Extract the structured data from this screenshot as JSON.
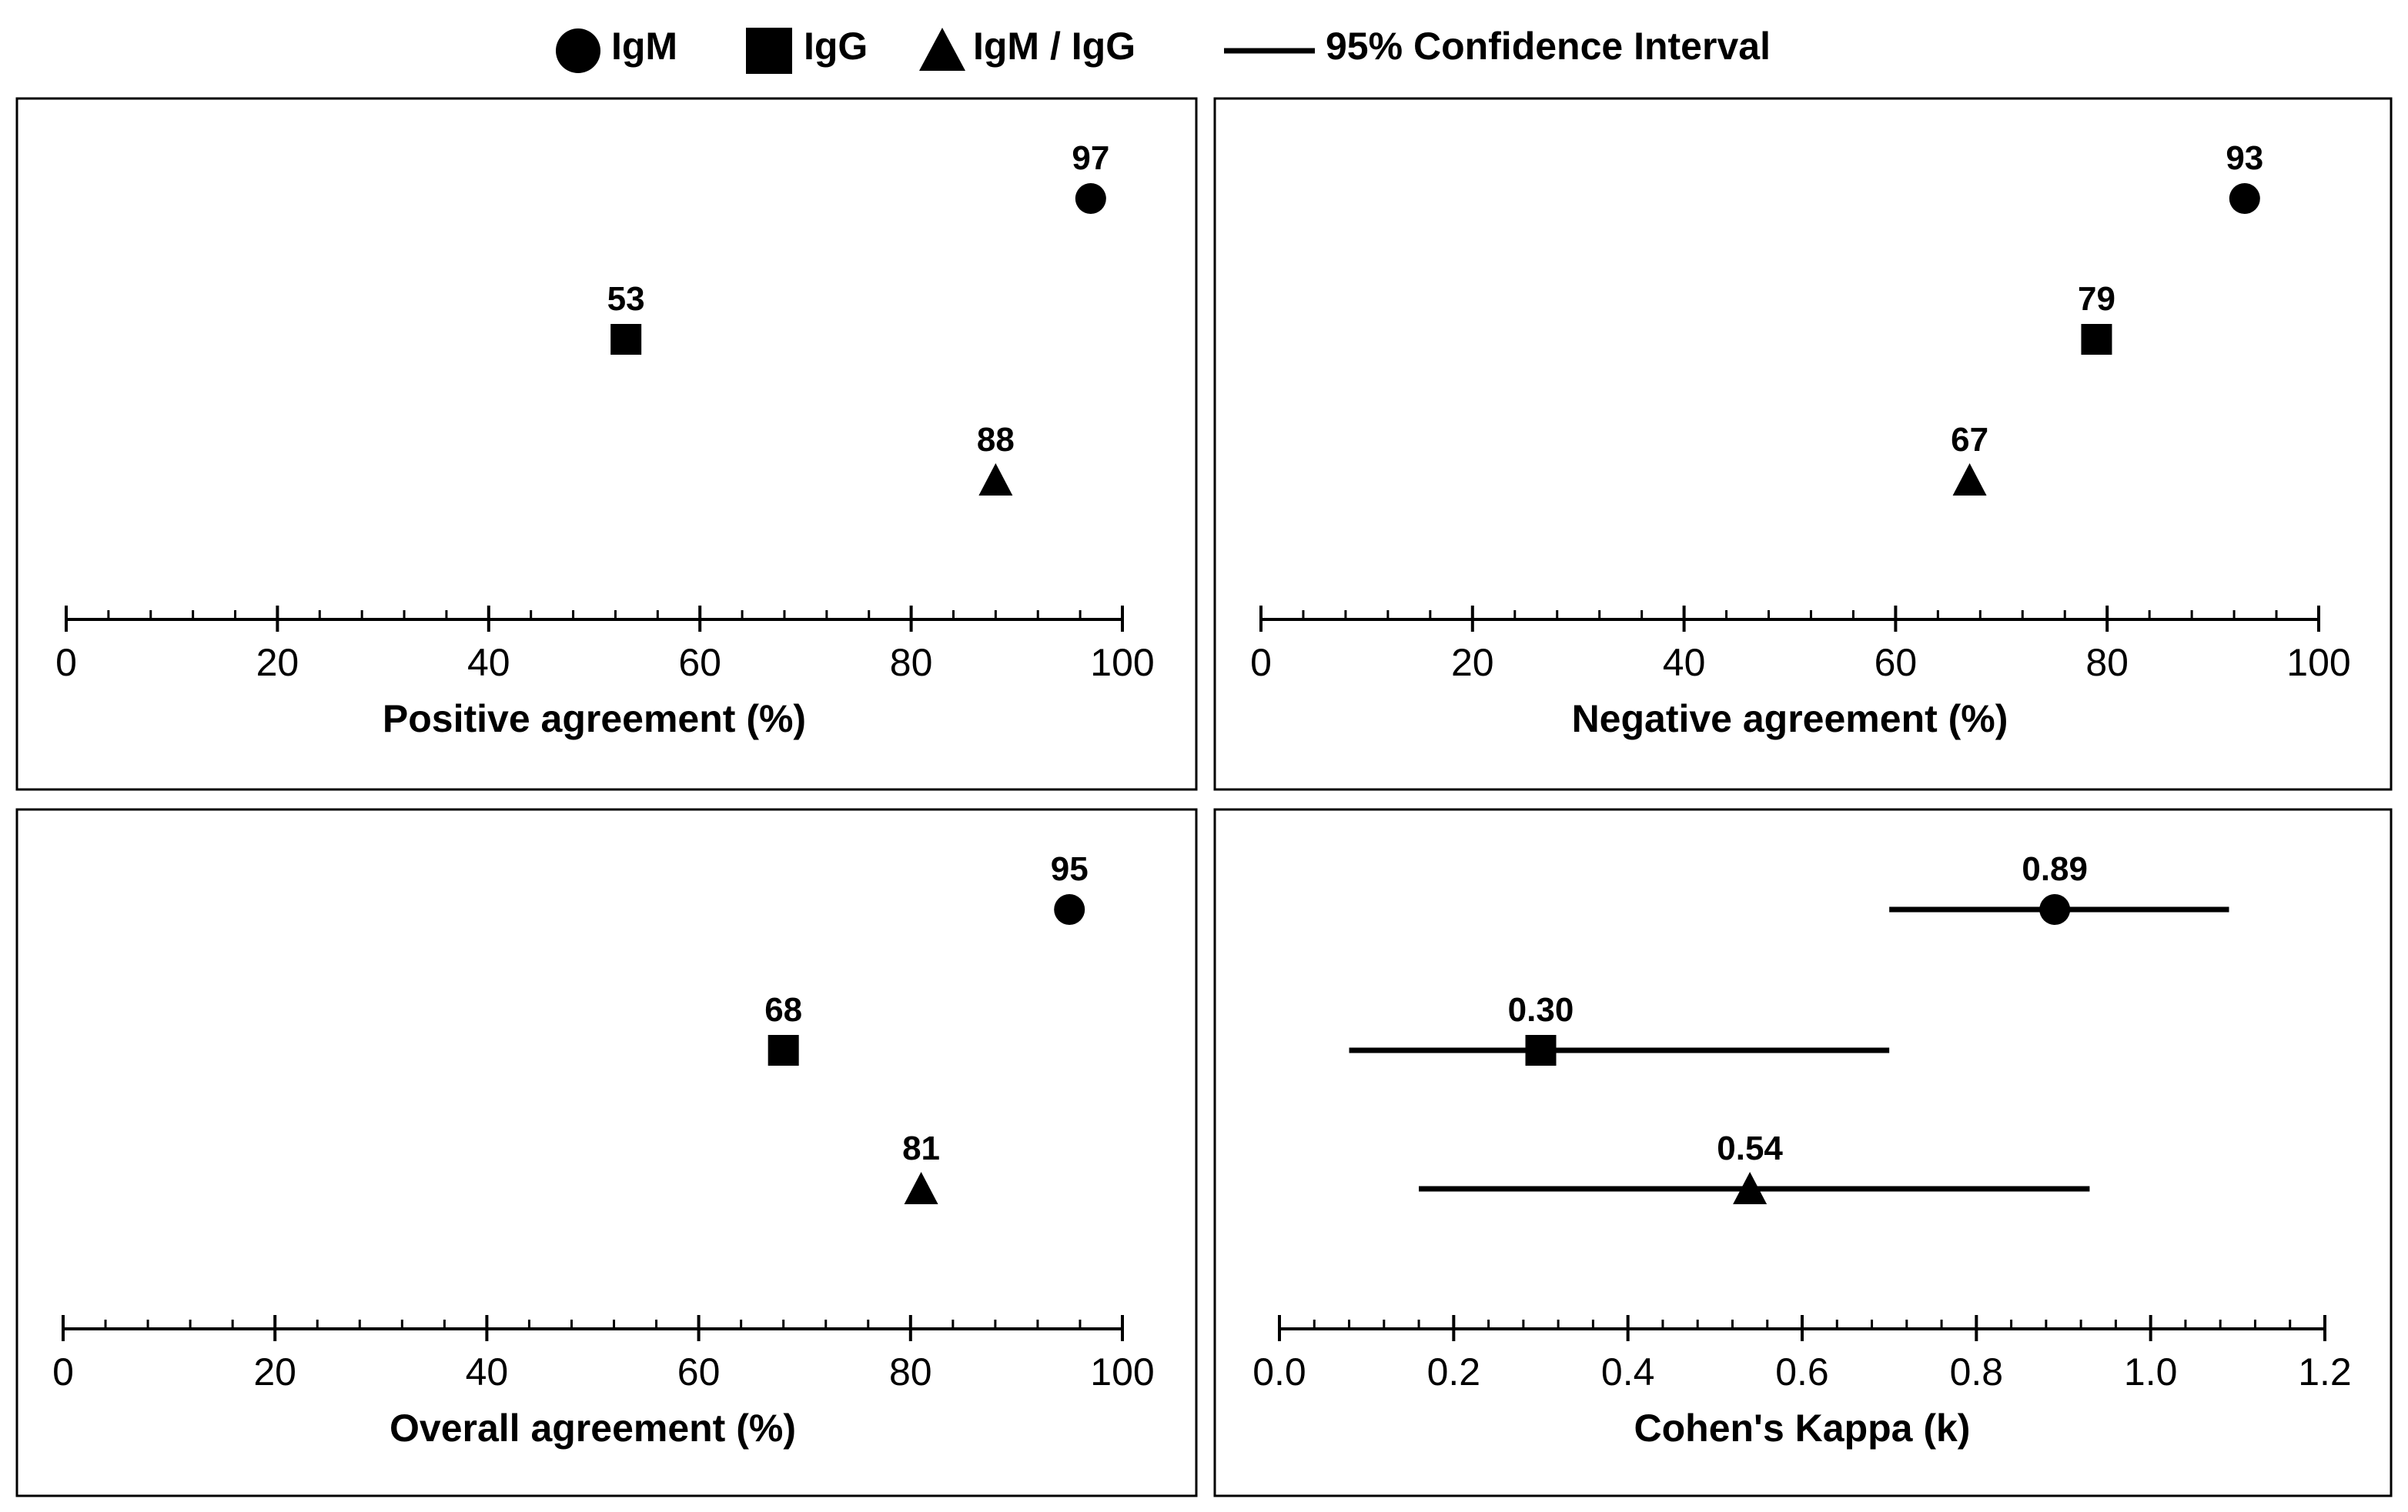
{
  "legend": [
    {
      "name": "IgM",
      "marker": "circle"
    },
    {
      "name": "IgG",
      "marker": "square"
    },
    {
      "name": "IgM / IgG",
      "marker": "triangle"
    },
    {
      "name": "95% Confidence Interval",
      "marker": "line"
    }
  ],
  "chart_data": [
    {
      "type": "scatter",
      "xlabel": "Positive agreement (%)",
      "xlim": [
        0,
        100
      ],
      "major_ticks": [
        0,
        20,
        40,
        60,
        80,
        100
      ],
      "tick_labels": [
        "0",
        "20",
        "40",
        "60",
        "80",
        "100"
      ],
      "minor_step": 4,
      "points": [
        {
          "series": "IgM",
          "value": 97,
          "label": "97"
        },
        {
          "series": "IgG",
          "value": 53,
          "label": "53"
        },
        {
          "series": "IgM / IgG",
          "value": 88,
          "label": "88"
        }
      ]
    },
    {
      "type": "scatter",
      "xlabel": "Negative agreement (%)",
      "xlim": [
        0,
        100
      ],
      "major_ticks": [
        0,
        20,
        40,
        60,
        80,
        100
      ],
      "tick_labels": [
        "0",
        "20",
        "40",
        "60",
        "80",
        "100"
      ],
      "minor_step": 4,
      "points": [
        {
          "series": "IgM",
          "value": 93,
          "label": "93"
        },
        {
          "series": "IgG",
          "value": 79,
          "label": "79"
        },
        {
          "series": "IgM / IgG",
          "value": 67,
          "label": "67"
        }
      ]
    },
    {
      "type": "scatter",
      "xlabel": "Overall agreement (%)",
      "xlim": [
        0,
        100
      ],
      "major_ticks": [
        0,
        20,
        40,
        60,
        80,
        100
      ],
      "tick_labels": [
        "0",
        "20",
        "40",
        "60",
        "80",
        "100"
      ],
      "minor_step": 4,
      "points": [
        {
          "series": "IgM",
          "value": 95,
          "label": "95"
        },
        {
          "series": "IgG",
          "value": 68,
          "label": "68"
        },
        {
          "series": "IgM / IgG",
          "value": 81,
          "label": "81"
        }
      ]
    },
    {
      "type": "scatter",
      "xlabel": "Cohen's Kappa (k)",
      "xlim": [
        0,
        1.2
      ],
      "major_ticks": [
        0,
        0.2,
        0.4,
        0.6,
        0.8,
        1.0,
        1.2
      ],
      "tick_labels": [
        "0.0",
        "0.2",
        "0.4",
        "0.6",
        "0.8",
        "1.0",
        "1.2"
      ],
      "minor_step": 0.04,
      "points": [
        {
          "series": "IgM",
          "value": 0.89,
          "label": "0.89",
          "ci": [
            0.7,
            1.09
          ]
        },
        {
          "series": "IgG",
          "value": 0.3,
          "label": "0.30",
          "ci": [
            0.08,
            0.7
          ]
        },
        {
          "series": "IgM / IgG",
          "value": 0.54,
          "label": "0.54",
          "ci": [
            0.16,
            0.93
          ]
        }
      ]
    }
  ]
}
